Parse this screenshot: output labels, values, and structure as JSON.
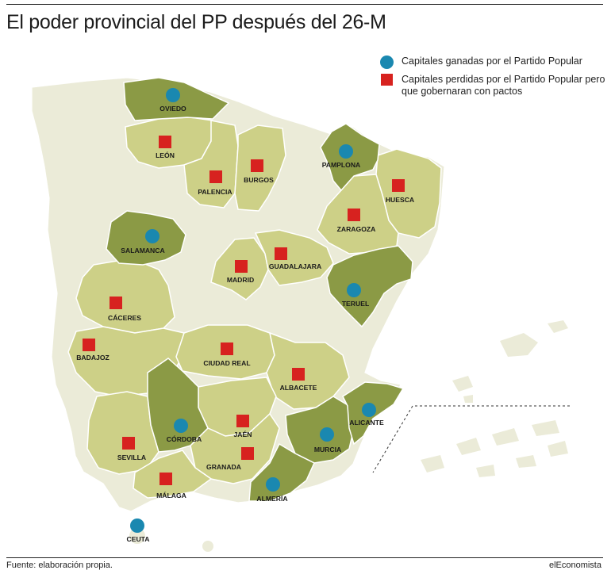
{
  "title": "El poder provincial del PP después del 26-M",
  "legend": {
    "gained": "Capitales ganadas por el Partido Popular",
    "lost": "Capitales perdidas por el Partido Popular pero que gobernaran con pactos"
  },
  "colors": {
    "gained_marker": "#1a88b0",
    "lost_marker": "#d7221f",
    "province_gained": "#8b9a45",
    "province_lost": "#cdd087",
    "province_other": "#ebebd8",
    "sea": "#ffffff"
  },
  "cities": [
    {
      "name": "OVIEDO",
      "status": "gained"
    },
    {
      "name": "LEÓN",
      "status": "lost"
    },
    {
      "name": "PALENCIA",
      "status": "lost"
    },
    {
      "name": "BURGOS",
      "status": "lost"
    },
    {
      "name": "PAMPLONA",
      "status": "gained"
    },
    {
      "name": "HUESCA",
      "status": "lost"
    },
    {
      "name": "ZARAGOZA",
      "status": "lost"
    },
    {
      "name": "SALAMANCA",
      "status": "gained"
    },
    {
      "name": "MADRID",
      "status": "lost"
    },
    {
      "name": "GUADALAJARA",
      "status": "lost"
    },
    {
      "name": "TERUEL",
      "status": "gained"
    },
    {
      "name": "CÁCERES",
      "status": "lost"
    },
    {
      "name": "BADAJOZ",
      "status": "lost"
    },
    {
      "name": "CIUDAD REAL",
      "status": "lost"
    },
    {
      "name": "ALBACETE",
      "status": "lost"
    },
    {
      "name": "ALICANTE",
      "status": "gained"
    },
    {
      "name": "CÓRDOBA",
      "status": "gained"
    },
    {
      "name": "JAÉN",
      "status": "lost"
    },
    {
      "name": "MURCIA",
      "status": "gained"
    },
    {
      "name": "SEVILLA",
      "status": "lost"
    },
    {
      "name": "GRANADA",
      "status": "lost"
    },
    {
      "name": "MÁLAGA",
      "status": "lost"
    },
    {
      "name": "ALMERÍA",
      "status": "gained"
    },
    {
      "name": "CEUTA",
      "status": "gained"
    }
  ],
  "footer": {
    "source": "Fuente: elaboración propia.",
    "credit": "elEconomista"
  }
}
